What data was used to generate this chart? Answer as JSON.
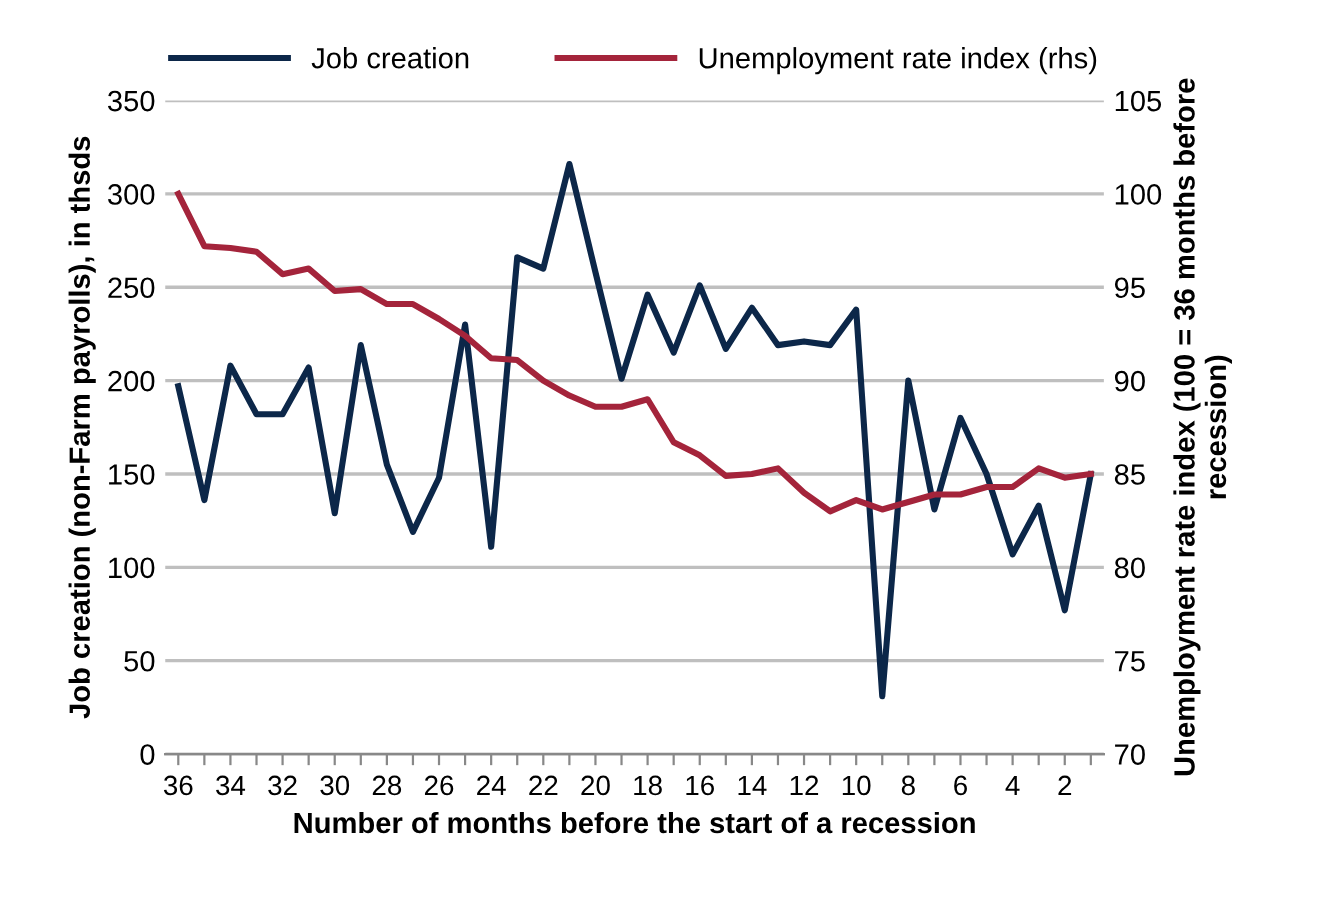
{
  "chart_data": {
    "type": "line",
    "xlabel": "Number of months before the start of a recession",
    "ylabel": "Job creation (non-Farm payrolls), in thsds",
    "y2label": "Unemployment rate index (100 = 36 months before recession)",
    "categories": [
      "36",
      null,
      "34",
      null,
      "32",
      null,
      "30",
      null,
      "28",
      null,
      "26",
      null,
      "24",
      null,
      "22",
      null,
      "20",
      null,
      "18",
      null,
      "16",
      null,
      "14",
      null,
      "12",
      null,
      "10",
      null,
      "8",
      null,
      "6",
      null,
      "4",
      null,
      "2",
      null
    ],
    "series": [
      {
        "name": "Job creation",
        "color": "#0c2749",
        "values": [
          197,
          136,
          208,
          182,
          182,
          207,
          129,
          219,
          155,
          119,
          148,
          230,
          111,
          266,
          260,
          316,
          258,
          201,
          246,
          215,
          251,
          217,
          239,
          219,
          221,
          219,
          238,
          31,
          200,
          131,
          180,
          150,
          107,
          133,
          77,
          150
        ]
      },
      {
        "name": "Unemployment rate index (rhs)",
        "color": "#a4243b",
        "axis": "y2",
        "values": [
          100,
          97.2,
          97.1,
          96.9,
          95.7,
          96,
          94.8,
          94.9,
          94.1,
          94.1,
          93.3,
          92.4,
          91.2,
          91.1,
          90.0,
          89.2,
          88.6,
          88.6,
          89.0,
          86.7,
          86.0,
          84.9,
          85.0,
          85.3,
          84.0,
          83.0,
          83.6,
          83.1,
          83.5,
          83.9,
          83.9,
          84.3,
          84.3,
          85.3,
          84.8,
          85.0
        ]
      }
    ],
    "ylim": [
      0,
      350
    ],
    "yticks": [
      0,
      50,
      100,
      150,
      200,
      250,
      300,
      350
    ],
    "y2lim": [
      70,
      105
    ],
    "y2ticks": [
      70,
      75,
      80,
      85,
      90,
      95,
      100,
      105
    ],
    "grid": "y",
    "legend": "top",
    "marker": "none",
    "line_style": "solid"
  }
}
